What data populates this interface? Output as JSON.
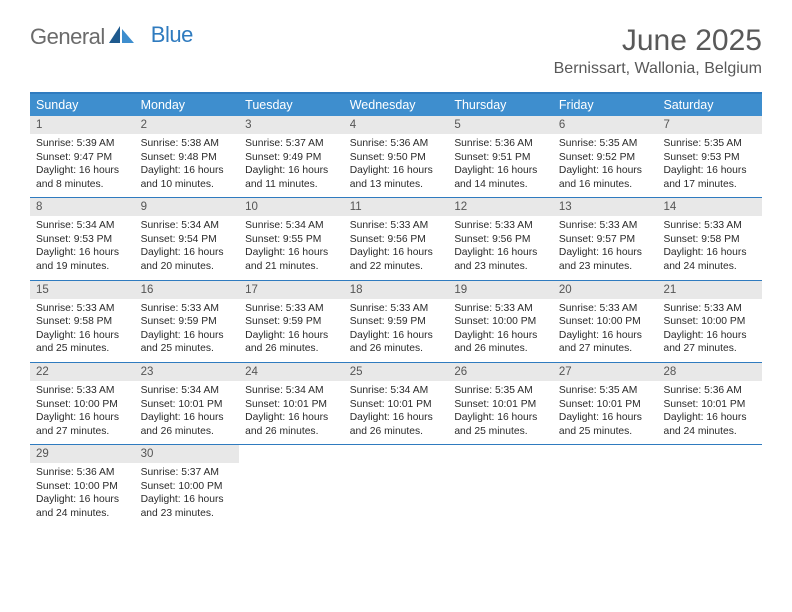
{
  "logo": {
    "part1": "General",
    "part2": "Blue"
  },
  "title": "June 2025",
  "location": "Bernissart, Wallonia, Belgium",
  "colors": {
    "header_bar": "#3e8ece",
    "rule": "#2f7bbf",
    "daynum_bg": "#e8e8e8",
    "text": "#333333",
    "title_text": "#595959"
  },
  "weekdays": [
    "Sunday",
    "Monday",
    "Tuesday",
    "Wednesday",
    "Thursday",
    "Friday",
    "Saturday"
  ],
  "weeks": [
    [
      {
        "n": "1",
        "sr": "Sunrise: 5:39 AM",
        "ss": "Sunset: 9:47 PM",
        "dl1": "Daylight: 16 hours",
        "dl2": "and 8 minutes."
      },
      {
        "n": "2",
        "sr": "Sunrise: 5:38 AM",
        "ss": "Sunset: 9:48 PM",
        "dl1": "Daylight: 16 hours",
        "dl2": "and 10 minutes."
      },
      {
        "n": "3",
        "sr": "Sunrise: 5:37 AM",
        "ss": "Sunset: 9:49 PM",
        "dl1": "Daylight: 16 hours",
        "dl2": "and 11 minutes."
      },
      {
        "n": "4",
        "sr": "Sunrise: 5:36 AM",
        "ss": "Sunset: 9:50 PM",
        "dl1": "Daylight: 16 hours",
        "dl2": "and 13 minutes."
      },
      {
        "n": "5",
        "sr": "Sunrise: 5:36 AM",
        "ss": "Sunset: 9:51 PM",
        "dl1": "Daylight: 16 hours",
        "dl2": "and 14 minutes."
      },
      {
        "n": "6",
        "sr": "Sunrise: 5:35 AM",
        "ss": "Sunset: 9:52 PM",
        "dl1": "Daylight: 16 hours",
        "dl2": "and 16 minutes."
      },
      {
        "n": "7",
        "sr": "Sunrise: 5:35 AM",
        "ss": "Sunset: 9:53 PM",
        "dl1": "Daylight: 16 hours",
        "dl2": "and 17 minutes."
      }
    ],
    [
      {
        "n": "8",
        "sr": "Sunrise: 5:34 AM",
        "ss": "Sunset: 9:53 PM",
        "dl1": "Daylight: 16 hours",
        "dl2": "and 19 minutes."
      },
      {
        "n": "9",
        "sr": "Sunrise: 5:34 AM",
        "ss": "Sunset: 9:54 PM",
        "dl1": "Daylight: 16 hours",
        "dl2": "and 20 minutes."
      },
      {
        "n": "10",
        "sr": "Sunrise: 5:34 AM",
        "ss": "Sunset: 9:55 PM",
        "dl1": "Daylight: 16 hours",
        "dl2": "and 21 minutes."
      },
      {
        "n": "11",
        "sr": "Sunrise: 5:33 AM",
        "ss": "Sunset: 9:56 PM",
        "dl1": "Daylight: 16 hours",
        "dl2": "and 22 minutes."
      },
      {
        "n": "12",
        "sr": "Sunrise: 5:33 AM",
        "ss": "Sunset: 9:56 PM",
        "dl1": "Daylight: 16 hours",
        "dl2": "and 23 minutes."
      },
      {
        "n": "13",
        "sr": "Sunrise: 5:33 AM",
        "ss": "Sunset: 9:57 PM",
        "dl1": "Daylight: 16 hours",
        "dl2": "and 23 minutes."
      },
      {
        "n": "14",
        "sr": "Sunrise: 5:33 AM",
        "ss": "Sunset: 9:58 PM",
        "dl1": "Daylight: 16 hours",
        "dl2": "and 24 minutes."
      }
    ],
    [
      {
        "n": "15",
        "sr": "Sunrise: 5:33 AM",
        "ss": "Sunset: 9:58 PM",
        "dl1": "Daylight: 16 hours",
        "dl2": "and 25 minutes."
      },
      {
        "n": "16",
        "sr": "Sunrise: 5:33 AM",
        "ss": "Sunset: 9:59 PM",
        "dl1": "Daylight: 16 hours",
        "dl2": "and 25 minutes."
      },
      {
        "n": "17",
        "sr": "Sunrise: 5:33 AM",
        "ss": "Sunset: 9:59 PM",
        "dl1": "Daylight: 16 hours",
        "dl2": "and 26 minutes."
      },
      {
        "n": "18",
        "sr": "Sunrise: 5:33 AM",
        "ss": "Sunset: 9:59 PM",
        "dl1": "Daylight: 16 hours",
        "dl2": "and 26 minutes."
      },
      {
        "n": "19",
        "sr": "Sunrise: 5:33 AM",
        "ss": "Sunset: 10:00 PM",
        "dl1": "Daylight: 16 hours",
        "dl2": "and 26 minutes."
      },
      {
        "n": "20",
        "sr": "Sunrise: 5:33 AM",
        "ss": "Sunset: 10:00 PM",
        "dl1": "Daylight: 16 hours",
        "dl2": "and 27 minutes."
      },
      {
        "n": "21",
        "sr": "Sunrise: 5:33 AM",
        "ss": "Sunset: 10:00 PM",
        "dl1": "Daylight: 16 hours",
        "dl2": "and 27 minutes."
      }
    ],
    [
      {
        "n": "22",
        "sr": "Sunrise: 5:33 AM",
        "ss": "Sunset: 10:00 PM",
        "dl1": "Daylight: 16 hours",
        "dl2": "and 27 minutes."
      },
      {
        "n": "23",
        "sr": "Sunrise: 5:34 AM",
        "ss": "Sunset: 10:01 PM",
        "dl1": "Daylight: 16 hours",
        "dl2": "and 26 minutes."
      },
      {
        "n": "24",
        "sr": "Sunrise: 5:34 AM",
        "ss": "Sunset: 10:01 PM",
        "dl1": "Daylight: 16 hours",
        "dl2": "and 26 minutes."
      },
      {
        "n": "25",
        "sr": "Sunrise: 5:34 AM",
        "ss": "Sunset: 10:01 PM",
        "dl1": "Daylight: 16 hours",
        "dl2": "and 26 minutes."
      },
      {
        "n": "26",
        "sr": "Sunrise: 5:35 AM",
        "ss": "Sunset: 10:01 PM",
        "dl1": "Daylight: 16 hours",
        "dl2": "and 25 minutes."
      },
      {
        "n": "27",
        "sr": "Sunrise: 5:35 AM",
        "ss": "Sunset: 10:01 PM",
        "dl1": "Daylight: 16 hours",
        "dl2": "and 25 minutes."
      },
      {
        "n": "28",
        "sr": "Sunrise: 5:36 AM",
        "ss": "Sunset: 10:01 PM",
        "dl1": "Daylight: 16 hours",
        "dl2": "and 24 minutes."
      }
    ],
    [
      {
        "n": "29",
        "sr": "Sunrise: 5:36 AM",
        "ss": "Sunset: 10:00 PM",
        "dl1": "Daylight: 16 hours",
        "dl2": "and 24 minutes."
      },
      {
        "n": "30",
        "sr": "Sunrise: 5:37 AM",
        "ss": "Sunset: 10:00 PM",
        "dl1": "Daylight: 16 hours",
        "dl2": "and 23 minutes."
      },
      null,
      null,
      null,
      null,
      null
    ]
  ]
}
